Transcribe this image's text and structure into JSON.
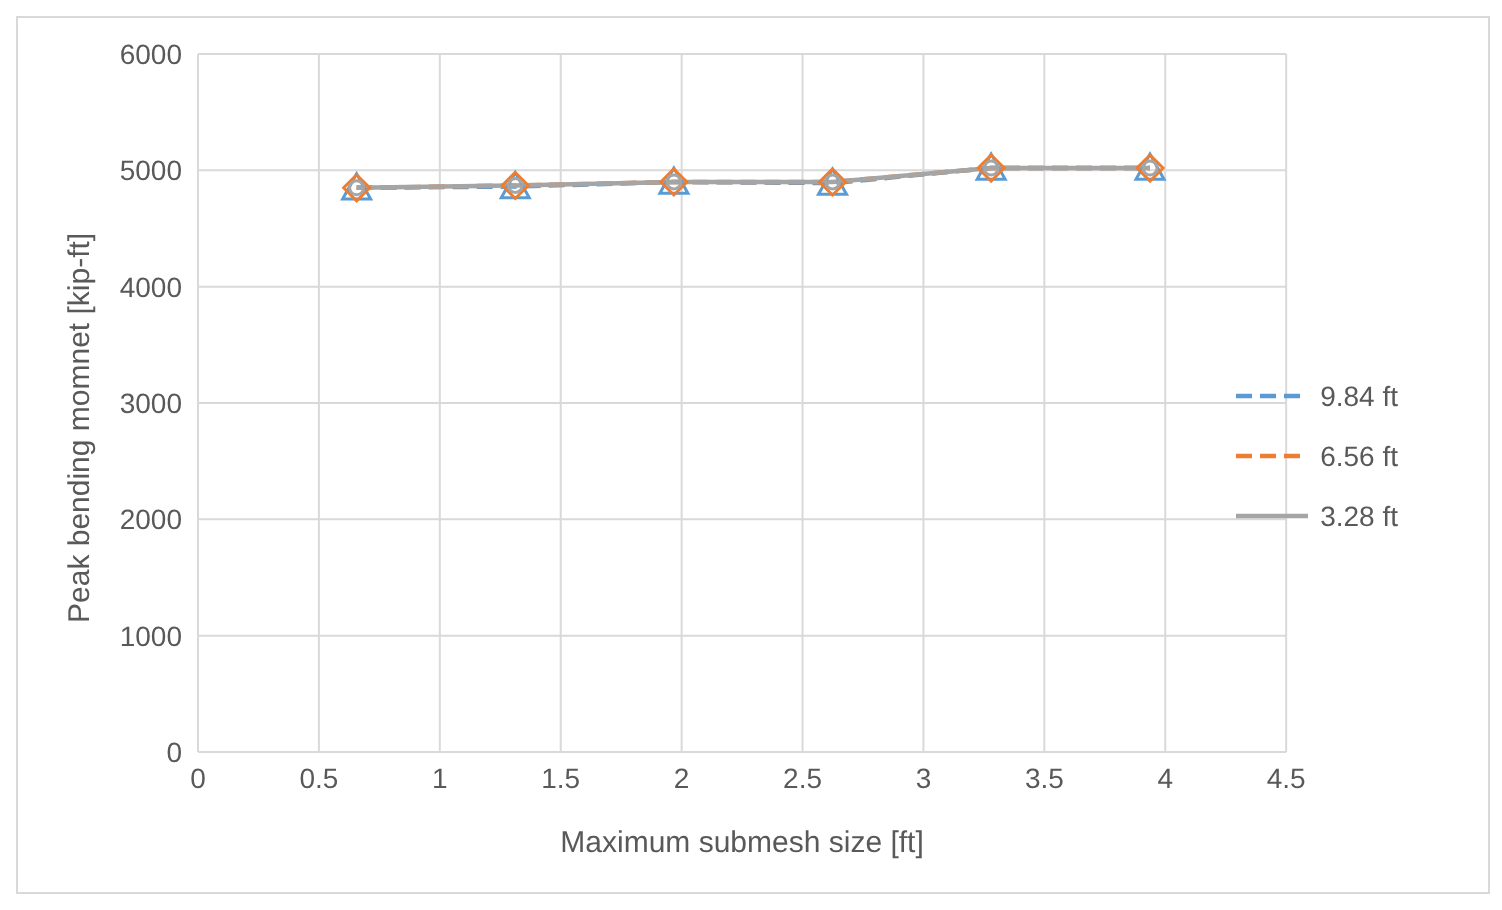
{
  "chart_data": {
    "type": "line",
    "xlabel": "Maximum submesh size [ft]",
    "ylabel": "Peak bending momnet [kip-ft]",
    "x": [
      0.656,
      1.312,
      1.968,
      2.624,
      3.28,
      3.937
    ],
    "series": [
      {
        "name": "9.84 ft",
        "color": "#5b9bd5",
        "values": [
          4850,
          4860,
          4900,
          4890,
          5020,
          5020
        ],
        "marker": "triangle",
        "line_style": "dashed"
      },
      {
        "name": "6.56 ft",
        "color": "#ed7d31",
        "values": [
          4850,
          4870,
          4900,
          4900,
          5020,
          5020
        ],
        "marker": "diamond",
        "line_style": "dashed"
      },
      {
        "name": "3.28 ft",
        "color": "#a5a5a5",
        "values": [
          4850,
          4870,
          4900,
          4900,
          5020,
          5020
        ],
        "marker": "circle",
        "line_style": "solid"
      }
    ],
    "xlim": [
      0,
      4.5
    ],
    "xticks": [
      0,
      0.5,
      1,
      1.5,
      2,
      2.5,
      3,
      3.5,
      4,
      4.5
    ],
    "ylim": [
      0,
      6000
    ],
    "yticks": [
      0,
      1000,
      2000,
      3000,
      4000,
      5000,
      6000
    ],
    "grid": true,
    "legend": "right"
  }
}
